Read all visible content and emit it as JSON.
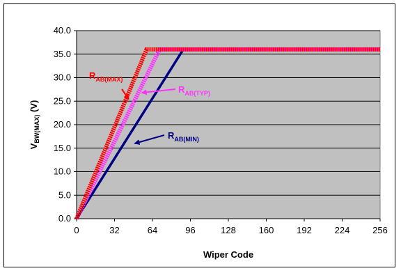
{
  "chart_data": {
    "type": "line",
    "xlabel": "Wiper Code",
    "ylabel": "V",
    "ylabel_sub": "BW(MAX)",
    "ylabel_unit": " (V)",
    "xlim": [
      0,
      256
    ],
    "ylim": [
      0,
      40
    ],
    "x_ticks": [
      "0",
      "32",
      "64",
      "96",
      "128",
      "160",
      "192",
      "224",
      "256"
    ],
    "y_ticks": [
      "0.0",
      "5.0",
      "10.0",
      "15.0",
      "20.0",
      "25.0",
      "30.0",
      "35.0",
      "40.0"
    ],
    "grid": true,
    "plot_background": "#c0c0c0",
    "series": [
      {
        "name": "R",
        "sub": "AB(MAX)",
        "color": "#ff0000",
        "style": "dotted-thick",
        "x": [
          0,
          59,
          256
        ],
        "y": [
          0,
          36,
          36
        ]
      },
      {
        "name": "R",
        "sub": "AB(TYP)",
        "color": "#ff33ff",
        "style": "dotted-thick",
        "x": [
          0,
          70,
          256
        ],
        "y": [
          0,
          36,
          36
        ]
      },
      {
        "name": "R",
        "sub": "AB(MIN)",
        "color": "#000080",
        "style": "solid",
        "x": [
          0,
          90,
          256
        ],
        "y": [
          0,
          36,
          36
        ]
      }
    ],
    "annotations": [
      {
        "text": "R",
        "sub": "AB(MAX)",
        "color": "#ff0000",
        "arrow_to": [
          44,
          25.4
        ]
      },
      {
        "text": "R",
        "sub": "AB(TYP)",
        "color": "#ff33ff",
        "arrow_to": [
          55,
          26.8
        ]
      },
      {
        "text": "R",
        "sub": "AB(MIN)",
        "color": "#000080",
        "arrow_to": [
          49,
          16.0
        ]
      }
    ]
  }
}
